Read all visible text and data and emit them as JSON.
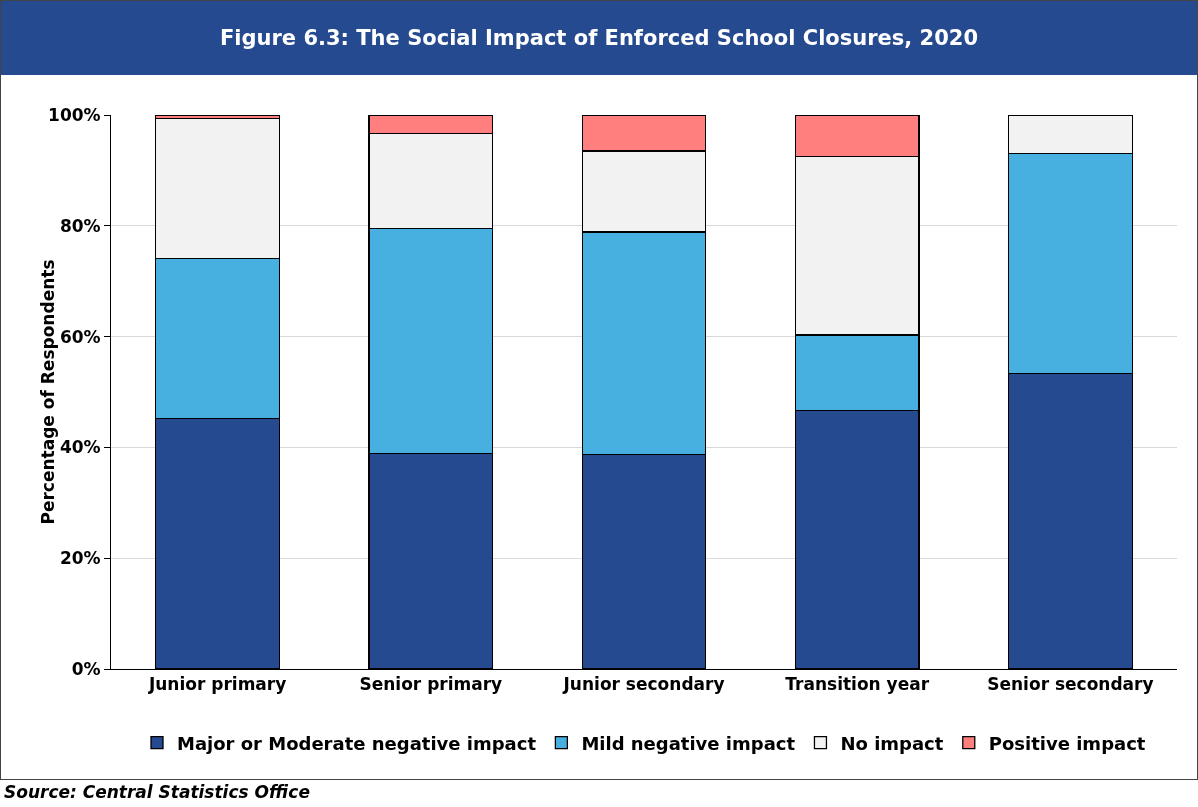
{
  "chart_data": {
    "type": "bar",
    "title": "Figure 6.3: The Social Impact of Enforced School Closures, 2020",
    "ylabel": "Percentage of Respondents",
    "categories": [
      "Junior primary",
      "Senior primary",
      "Junior secondary",
      "Transition year",
      "Senior secondary"
    ],
    "series": [
      {
        "name": "Major or Moderate negative impact",
        "color": "#264a8f",
        "values": [
          45.2,
          38.9,
          38.7,
          46.6,
          53.3
        ]
      },
      {
        "name": "Mild negative impact",
        "color": "#47b0e0",
        "values": [
          28.9,
          40.6,
          40.2,
          13.7,
          39.8
        ]
      },
      {
        "name": "No impact",
        "color": "#f2f2f2",
        "values": [
          25.3,
          17.2,
          14.6,
          32.2,
          6.9
        ]
      },
      {
        "name": "Positive impact",
        "color": "#ff7f7f",
        "values": [
          0.6,
          3.3,
          6.5,
          7.5,
          0
        ]
      }
    ],
    "stacked": true,
    "ylim": [
      0,
      100
    ],
    "yticks": [
      {
        "value": 0,
        "label": "0%"
      },
      {
        "value": 20,
        "label": "20%"
      },
      {
        "value": 40,
        "label": "40%"
      },
      {
        "value": 60,
        "label": "60%"
      },
      {
        "value": 80,
        "label": "80%"
      },
      {
        "value": 100,
        "label": "100%"
      }
    ],
    "grid": "y",
    "legend": "bottom",
    "annotations": [
      "Source: Central Statistics Office"
    ]
  }
}
